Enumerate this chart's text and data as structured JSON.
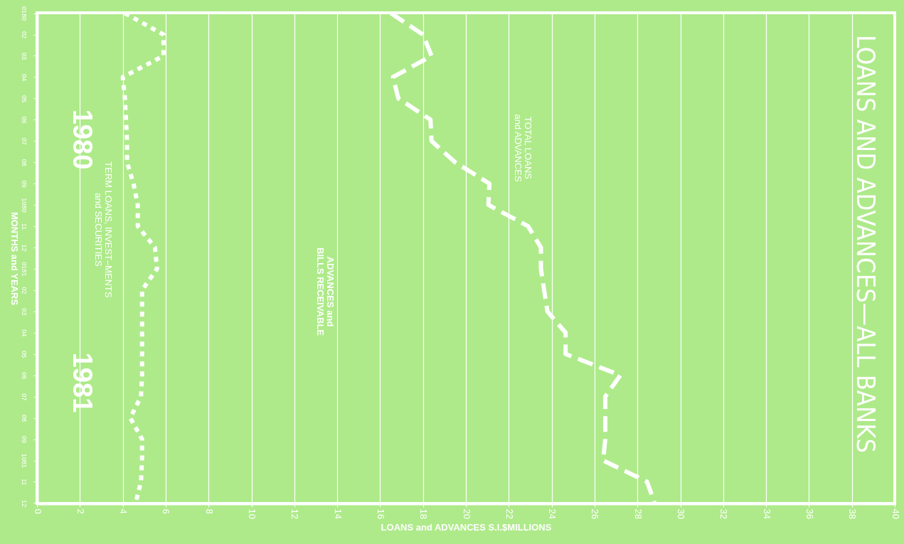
{
  "chart_data": {
    "type": "line",
    "orientation": "horizontal",
    "title": "LOANS AND ADVANCES—ALL BANKS",
    "xlabel": "LOANS and ADVANCES   S.I.$MILLIONS",
    "ylabel": "MONTHS and YEARS",
    "categories": [
      "0180",
      "02",
      "03",
      "04",
      "05",
      "06",
      "07",
      "08",
      "09",
      "1080",
      "11",
      "12",
      "0181",
      "02",
      "03",
      "04",
      "05",
      "06",
      "07",
      "08",
      "09",
      "1081",
      "11",
      "12"
    ],
    "series": [
      {
        "name": "TERM LOANS, INVEST–MENTS and SECURITIES",
        "color": "#ffffff",
        "line_style": "dotted",
        "values": [
          4.1,
          5.9,
          5.9,
          4.0,
          4.1,
          4.15,
          4.2,
          4.2,
          4.5,
          4.7,
          4.7,
          5.5,
          5.6,
          4.9,
          4.9,
          4.9,
          4.9,
          4.9,
          4.85,
          4.35,
          4.9,
          4.9,
          4.85,
          4.6
        ]
      },
      {
        "name": "TOTAL LOANS and ADVANCES",
        "color": "#ffffff",
        "line_style": "dashed",
        "values": [
          16.5,
          18.0,
          18.4,
          16.6,
          16.85,
          18.35,
          18.4,
          19.5,
          21.1,
          21.05,
          22.9,
          23.5,
          23.5,
          23.65,
          23.8,
          24.65,
          24.65,
          27.2,
          26.5,
          26.5,
          26.5,
          26.4,
          28.45,
          28.8
        ]
      }
    ],
    "annotations": [
      "1980",
      "1981",
      "ADVANCES and BILLS RECEIVABLE"
    ],
    "xlim": [
      0,
      40
    ],
    "xticks": [
      0,
      2,
      4,
      6,
      8,
      10,
      12,
      14,
      16,
      18,
      20,
      22,
      24,
      26,
      28,
      30,
      32,
      34,
      36,
      38,
      40
    ],
    "grid": "x",
    "marker": "none"
  }
}
